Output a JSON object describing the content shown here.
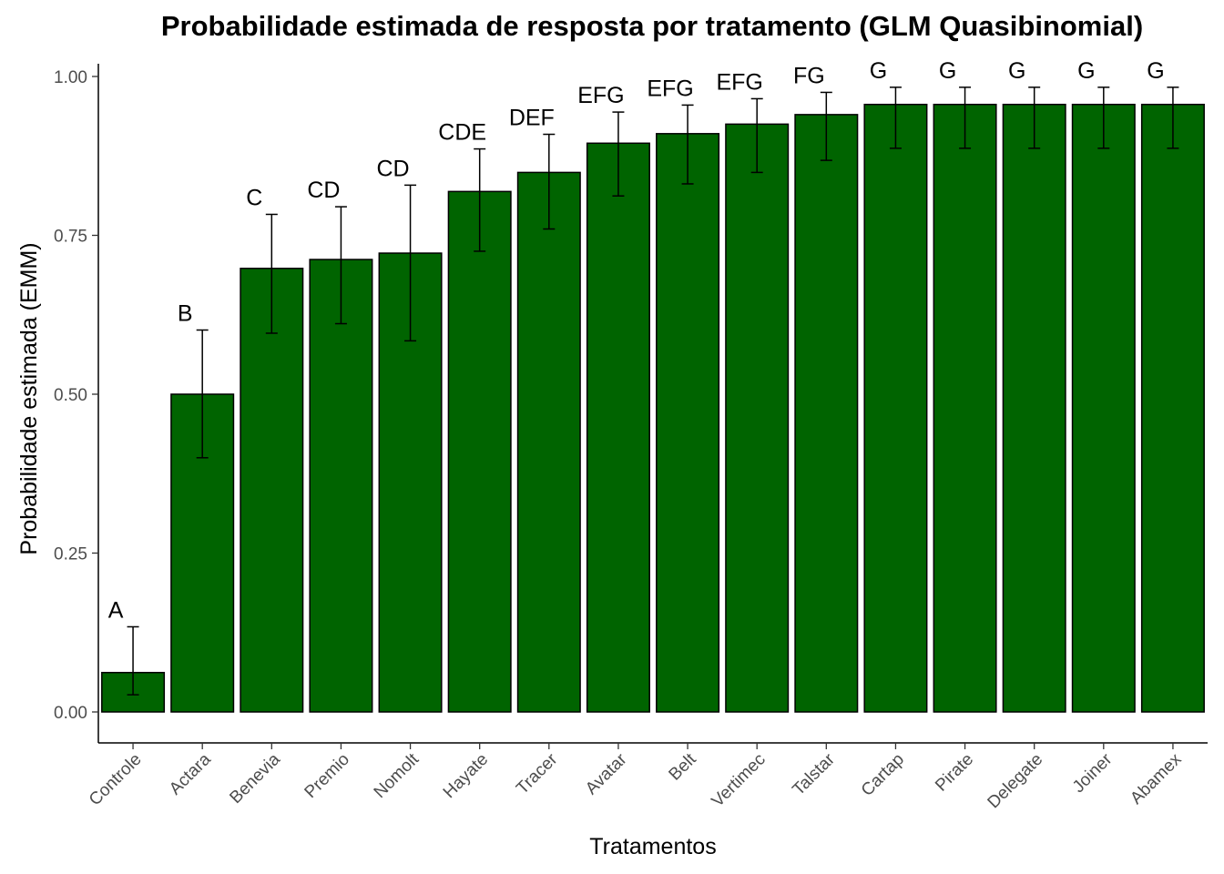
{
  "chart_data": {
    "type": "bar",
    "title": "Probabilidade estimada de resposta por tratamento (GLM Quasibinomial)",
    "xlabel": "Tratamentos",
    "ylabel": "Probabilidade estimada (EMM)",
    "ylim": [
      -0.05,
      1.03
    ],
    "yticks": [
      "0.00",
      "0.25",
      "0.50",
      "0.75",
      "1.00"
    ],
    "yticks_values": [
      0,
      0.25,
      0.5,
      0.75,
      1.0
    ],
    "grid": false,
    "bar_color": "#006400",
    "bar_outline": "#000000",
    "categories": [
      "Controle",
      "Actara",
      "Benevia",
      "Premio",
      "Nomolt",
      "Hayate",
      "Tracer",
      "Avatar",
      "Belt",
      "Vertimec",
      "Talstar",
      "Cartap",
      "Pirate",
      "Delegate",
      "Joiner",
      "Abamex"
    ],
    "values": [
      0.062,
      0.5,
      0.698,
      0.712,
      0.722,
      0.819,
      0.849,
      0.895,
      0.91,
      0.925,
      0.94,
      0.956,
      0.956,
      0.956,
      0.956,
      0.956
    ],
    "error_lower": [
      0.027,
      0.4,
      0.596,
      0.611,
      0.584,
      0.725,
      0.76,
      0.812,
      0.831,
      0.849,
      0.868,
      0.887,
      0.887,
      0.887,
      0.887,
      0.887
    ],
    "error_upper": [
      0.134,
      0.601,
      0.783,
      0.795,
      0.829,
      0.886,
      0.909,
      0.944,
      0.955,
      0.965,
      0.975,
      0.983,
      0.983,
      0.983,
      0.983,
      0.983
    ],
    "group_letters": [
      "A",
      "B",
      "C",
      "CD",
      "CD",
      "CDE",
      "DEF",
      "EFG",
      "EFG",
      "EFG",
      "FG",
      "G",
      "G",
      "G",
      "G",
      "G"
    ]
  }
}
